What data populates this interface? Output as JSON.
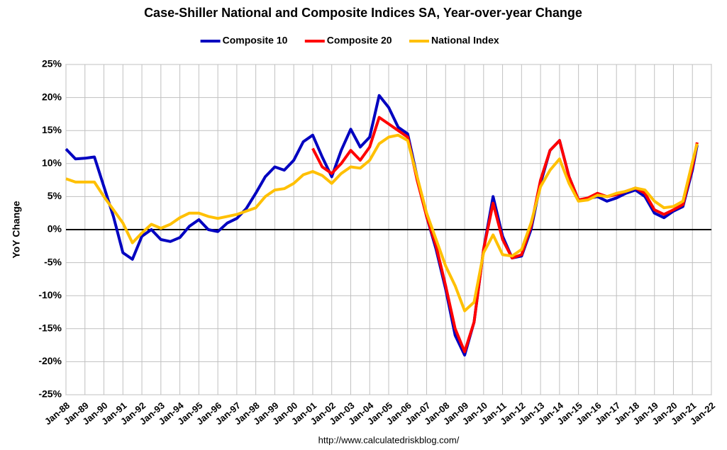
{
  "chart_data": {
    "type": "line",
    "title": "Case-Shiller National and Composite Indices SA, Year-over-year Change",
    "y_label": "YoY Change",
    "source": "http://www.calculatedriskblog.com/",
    "x": [
      1988.0,
      1988.5,
      1989.0,
      1989.5,
      1990.0,
      1990.5,
      1991.0,
      1991.5,
      1992.0,
      1992.5,
      1993.0,
      1993.5,
      1994.0,
      1994.5,
      1995.0,
      1995.5,
      1996.0,
      1996.5,
      1997.0,
      1997.5,
      1998.0,
      1998.5,
      1999.0,
      1999.5,
      2000.0,
      2000.5,
      2001.0,
      2001.5,
      2002.0,
      2002.5,
      2003.0,
      2003.5,
      2004.0,
      2004.5,
      2005.0,
      2005.5,
      2006.0,
      2006.5,
      2007.0,
      2007.5,
      2008.0,
      2008.5,
      2009.0,
      2009.5,
      2010.0,
      2010.5,
      2011.0,
      2011.5,
      2012.0,
      2012.5,
      2013.0,
      2013.5,
      2014.0,
      2014.5,
      2015.0,
      2015.5,
      2016.0,
      2016.5,
      2017.0,
      2017.5,
      2018.0,
      2018.5,
      2019.0,
      2019.5,
      2020.0,
      2020.5,
      2021.0,
      2021.25
    ],
    "series": [
      {
        "name": "Composite 10",
        "color": "#0000c0",
        "values": [
          12.2,
          10.7,
          10.8,
          11,
          6.5,
          2,
          -3.5,
          -4.5,
          -1,
          0,
          -1.5,
          -1.8,
          -1.2,
          0.5,
          1.5,
          0,
          -0.3,
          1,
          1.7,
          3.2,
          5.5,
          8,
          9.5,
          9,
          10.5,
          13.3,
          14.3,
          11,
          8,
          12,
          15.2,
          12.5,
          14,
          20.3,
          18.5,
          15.5,
          14.5,
          8,
          2,
          -3,
          -9,
          -16,
          -19,
          -14,
          -3,
          5,
          -1,
          -4.3,
          -4,
          0,
          7,
          12,
          13.5,
          8,
          4.5,
          4.7,
          5,
          4.3,
          4.8,
          5.5,
          6,
          5,
          2.5,
          1.8,
          2.8,
          3.5,
          9,
          12.8
        ]
      },
      {
        "name": "Composite 20",
        "color": "#ff0000",
        "values": [
          null,
          null,
          null,
          null,
          null,
          null,
          null,
          null,
          null,
          null,
          null,
          null,
          null,
          null,
          null,
          null,
          null,
          null,
          null,
          null,
          null,
          null,
          null,
          null,
          null,
          null,
          12.3,
          9.5,
          8.5,
          10,
          12,
          10.5,
          12.5,
          17,
          16,
          15,
          14,
          7.5,
          2,
          -2.5,
          -8.5,
          -15,
          -18.5,
          -14,
          -3,
          4,
          -1.5,
          -4.3,
          -3.8,
          0.5,
          7.5,
          12,
          13.5,
          8,
          4.5,
          4.8,
          5.5,
          5,
          5.3,
          5.8,
          6.3,
          5.5,
          3,
          2.3,
          3,
          3.8,
          9.5,
          13.2
        ]
      },
      {
        "name": "National Index",
        "color": "#ffc000",
        "values": [
          7.7,
          7.2,
          7.2,
          7.2,
          5,
          3,
          1,
          -2,
          -0.5,
          0.8,
          0.2,
          0.8,
          1.8,
          2.5,
          2.5,
          2,
          1.7,
          2,
          2.3,
          2.8,
          3.3,
          5,
          6,
          6.2,
          7,
          8.3,
          8.8,
          8.2,
          7,
          8.5,
          9.5,
          9.3,
          10.5,
          13,
          14,
          14.3,
          13.5,
          8,
          2.5,
          -1.5,
          -5.5,
          -8.5,
          -12.3,
          -11,
          -3.5,
          -0.8,
          -3.8,
          -4,
          -3,
          1,
          6.5,
          9,
          10.7,
          7,
          4.3,
          4.5,
          5.2,
          5,
          5.5,
          5.8,
          6.3,
          6,
          4.3,
          3.3,
          3.5,
          4.3,
          10.2,
          13
        ]
      }
    ],
    "xlim": [
      1988,
      2022
    ],
    "xticks": [
      {
        "value": 1988,
        "label": "Jan-88"
      },
      {
        "value": 1989,
        "label": "Jan-89"
      },
      {
        "value": 1990,
        "label": "Jan-90"
      },
      {
        "value": 1991,
        "label": "Jan-91"
      },
      {
        "value": 1992,
        "label": "Jan-92"
      },
      {
        "value": 1993,
        "label": "Jan-93"
      },
      {
        "value": 1994,
        "label": "Jan-94"
      },
      {
        "value": 1995,
        "label": "Jan-95"
      },
      {
        "value": 1996,
        "label": "Jan-96"
      },
      {
        "value": 1997,
        "label": "Jan-97"
      },
      {
        "value": 1998,
        "label": "Jan-98"
      },
      {
        "value": 1999,
        "label": "Jan-99"
      },
      {
        "value": 2000,
        "label": "Jan-00"
      },
      {
        "value": 2001,
        "label": "Jan-01"
      },
      {
        "value": 2002,
        "label": "Jan-02"
      },
      {
        "value": 2003,
        "label": "Jan-03"
      },
      {
        "value": 2004,
        "label": "Jan-04"
      },
      {
        "value": 2005,
        "label": "Jan-05"
      },
      {
        "value": 2006,
        "label": "Jan-06"
      },
      {
        "value": 2007,
        "label": "Jan-07"
      },
      {
        "value": 2008,
        "label": "Jan-08"
      },
      {
        "value": 2009,
        "label": "Jan-09"
      },
      {
        "value": 2010,
        "label": "Jan-10"
      },
      {
        "value": 2011,
        "label": "Jan-11"
      },
      {
        "value": 2012,
        "label": "Jan-12"
      },
      {
        "value": 2013,
        "label": "Jan-13"
      },
      {
        "value": 2014,
        "label": "Jan-14"
      },
      {
        "value": 2015,
        "label": "Jan-15"
      },
      {
        "value": 2016,
        "label": "Jan-16"
      },
      {
        "value": 2017,
        "label": "Jan-17"
      },
      {
        "value": 2018,
        "label": "Jan-18"
      },
      {
        "value": 2019,
        "label": "Jan-19"
      },
      {
        "value": 2020,
        "label": "Jan-20"
      },
      {
        "value": 2021,
        "label": "Jan-21"
      },
      {
        "value": 2022,
        "label": "Jan-22"
      }
    ],
    "ylim": [
      -25,
      25
    ],
    "yticks": [
      {
        "value": -25,
        "label": "-25%"
      },
      {
        "value": -20,
        "label": "-20%"
      },
      {
        "value": -15,
        "label": "-15%"
      },
      {
        "value": -10,
        "label": "-10%"
      },
      {
        "value": -5,
        "label": "-5%"
      },
      {
        "value": 0,
        "label": "0%"
      },
      {
        "value": 5,
        "label": "5%"
      },
      {
        "value": 10,
        "label": "10%"
      },
      {
        "value": 15,
        "label": "15%"
      },
      {
        "value": 20,
        "label": "20%"
      },
      {
        "value": 25,
        "label": "25%"
      }
    ],
    "grid": true,
    "legend": "top"
  }
}
